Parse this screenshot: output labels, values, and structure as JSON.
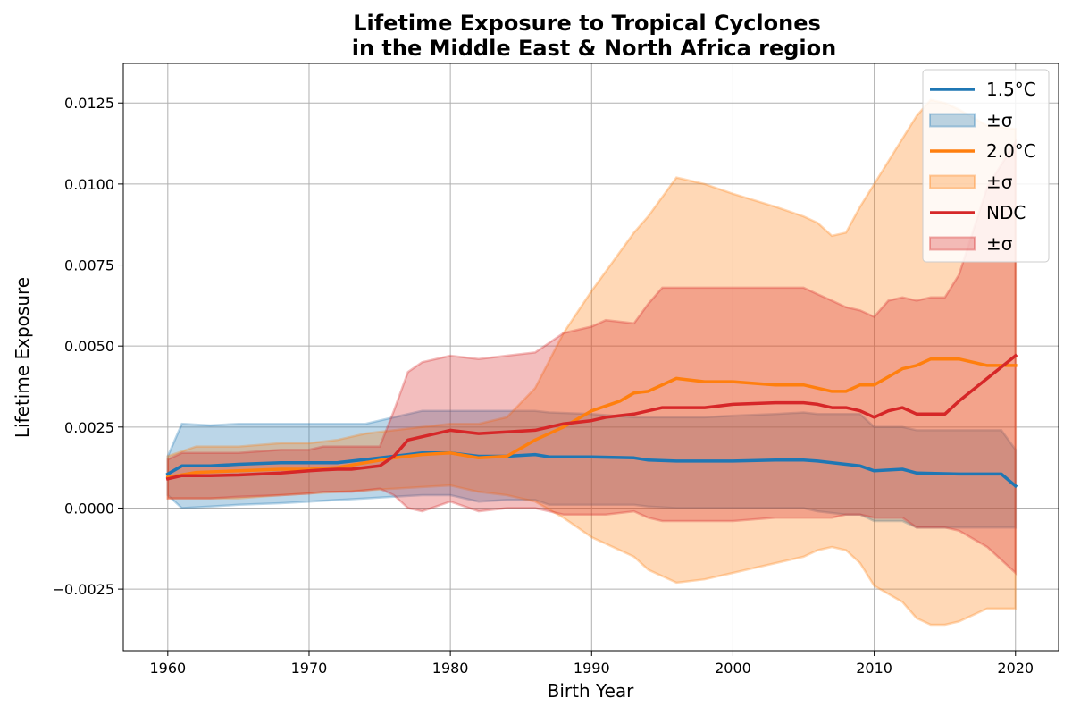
{
  "chart_data": {
    "type": "line",
    "title_line1": "Lifetime Exposure to Tropical Cyclones",
    "title_line2": "in the Middle East & North Africa region",
    "xlabel": "Birth Year",
    "ylabel": "Lifetime Exposure",
    "xlim": [
      1956.85,
      2023.05
    ],
    "ylim": [
      -0.0044,
      0.01372
    ],
    "grid": true,
    "legend_position": "top-right",
    "xticks": [
      1960,
      1970,
      1980,
      1990,
      2000,
      2010,
      2020
    ],
    "xtick_labels": [
      "1960",
      "1970",
      "1980",
      "1990",
      "2000",
      "2010",
      "2020"
    ],
    "yticks": [
      -0.0025,
      0.0,
      0.0025,
      0.005,
      0.0075,
      0.01,
      0.0125
    ],
    "ytick_labels": [
      "−0.0025",
      "0.0000",
      "0.0025",
      "0.0050",
      "0.0075",
      "0.0100",
      "0.0125"
    ],
    "series": [
      {
        "name": "1.5°C",
        "band_label": "±σ",
        "color": "#1f77b4",
        "x": [
          1960,
          1961,
          1963,
          1965,
          1968,
          1970,
          1972,
          1974,
          1976,
          1978,
          1980,
          1982,
          1984,
          1986,
          1987,
          1990,
          1993,
          1994,
          1996,
          1998,
          2000,
          2003,
          2005,
          2006,
          2008,
          2009,
          2010,
          2012,
          2013,
          2016,
          2019,
          2020
        ],
        "mean": [
          0.00105,
          0.0013,
          0.0013,
          0.00135,
          0.0014,
          0.0014,
          0.0014,
          0.0015,
          0.0016,
          0.0017,
          0.0017,
          0.0016,
          0.0016,
          0.00165,
          0.00158,
          0.00158,
          0.00155,
          0.00148,
          0.00145,
          0.00145,
          0.00145,
          0.00148,
          0.00148,
          0.00145,
          0.00135,
          0.0013,
          0.00115,
          0.0012,
          0.00108,
          0.00105,
          0.00105,
          0.00068
        ],
        "upper": [
          0.0016,
          0.0026,
          0.00255,
          0.0026,
          0.0026,
          0.0026,
          0.0026,
          0.0026,
          0.0028,
          0.003,
          0.003,
          0.003,
          0.003,
          0.003,
          0.00295,
          0.0029,
          0.0028,
          0.0028,
          0.0028,
          0.0028,
          0.00285,
          0.0029,
          0.00295,
          0.0029,
          0.0029,
          0.0029,
          0.0025,
          0.0025,
          0.0024,
          0.0024,
          0.0024,
          0.0018
        ],
        "lower": [
          0.0004,
          0.0,
          5e-05,
          0.0001,
          0.00015,
          0.0002,
          0.00025,
          0.0003,
          0.00035,
          0.0004,
          0.0004,
          0.0002,
          0.00025,
          0.00025,
          0.0001,
          0.0001,
          0.0001,
          5e-05,
          0.0,
          0.0,
          0.0,
          0.0,
          0.0,
          -0.0001,
          -0.0002,
          -0.0002,
          -0.0004,
          -0.0004,
          -0.0006,
          -0.0006,
          -0.0006,
          -0.0006
        ]
      },
      {
        "name": "2.0°C",
        "band_label": "±σ",
        "color": "#ff7f0e",
        "x": [
          1960,
          1962,
          1965,
          1968,
          1970,
          1972,
          1974,
          1976,
          1978,
          1980,
          1982,
          1984,
          1986,
          1988,
          1990,
          1992,
          1993,
          1994,
          1996,
          1998,
          2000,
          2003,
          2005,
          2006,
          2007,
          2008,
          2009,
          2010,
          2012,
          2013,
          2014,
          2015,
          2016,
          2018,
          2020
        ],
        "mean": [
          0.00095,
          0.0011,
          0.00115,
          0.0012,
          0.0012,
          0.00125,
          0.0014,
          0.00155,
          0.00165,
          0.0017,
          0.00155,
          0.0016,
          0.0021,
          0.0025,
          0.003,
          0.0033,
          0.00355,
          0.0036,
          0.004,
          0.0039,
          0.0039,
          0.0038,
          0.0038,
          0.0037,
          0.0036,
          0.0036,
          0.0038,
          0.0038,
          0.0043,
          0.0044,
          0.0046,
          0.0046,
          0.0046,
          0.0044,
          0.0044
        ],
        "upper": [
          0.0016,
          0.0019,
          0.0019,
          0.002,
          0.002,
          0.0021,
          0.0023,
          0.0024,
          0.0025,
          0.0026,
          0.0026,
          0.0028,
          0.0037,
          0.0054,
          0.0067,
          0.0079,
          0.0085,
          0.009,
          0.0102,
          0.01,
          0.0097,
          0.0093,
          0.009,
          0.0088,
          0.0084,
          0.0085,
          0.0093,
          0.01,
          0.0114,
          0.0121,
          0.0126,
          0.0125,
          0.0123,
          0.0118,
          0.0117
        ],
        "lower": [
          0.0003,
          0.0003,
          0.0003,
          0.0004,
          0.00045,
          0.0005,
          0.00055,
          0.0006,
          0.00065,
          0.0007,
          0.0005,
          0.0004,
          0.0002,
          -0.0003,
          -0.0009,
          -0.0013,
          -0.0015,
          -0.0019,
          -0.0023,
          -0.0022,
          -0.002,
          -0.0017,
          -0.0015,
          -0.0013,
          -0.0012,
          -0.0013,
          -0.0017,
          -0.0024,
          -0.0029,
          -0.0034,
          -0.0036,
          -0.0036,
          -0.0035,
          -0.0031,
          -0.0031
        ]
      },
      {
        "name": "NDC",
        "band_label": "±σ",
        "color": "#d62728",
        "x": [
          1960,
          1961,
          1963,
          1965,
          1968,
          1970,
          1971,
          1972,
          1973,
          1974,
          1975,
          1976,
          1977,
          1978,
          1980,
          1982,
          1984,
          1986,
          1988,
          1990,
          1991,
          1993,
          1994,
          1995,
          1996,
          1998,
          2000,
          2003,
          2005,
          2006,
          2007,
          2008,
          2009,
          2010,
          2011,
          2012,
          2013,
          2014,
          2015,
          2016,
          2018,
          2020
        ],
        "mean": [
          0.0009,
          0.001,
          0.001,
          0.00102,
          0.00108,
          0.00115,
          0.00118,
          0.0012,
          0.0012,
          0.00125,
          0.0013,
          0.0016,
          0.0021,
          0.0022,
          0.0024,
          0.0023,
          0.00235,
          0.0024,
          0.0026,
          0.0027,
          0.0028,
          0.0029,
          0.003,
          0.0031,
          0.0031,
          0.0031,
          0.0032,
          0.00325,
          0.00325,
          0.0032,
          0.0031,
          0.0031,
          0.003,
          0.0028,
          0.003,
          0.0031,
          0.0029,
          0.0029,
          0.0029,
          0.0033,
          0.004,
          0.0047
        ],
        "upper": [
          0.0015,
          0.0017,
          0.0017,
          0.0017,
          0.0018,
          0.0018,
          0.0019,
          0.0019,
          0.0019,
          0.0019,
          0.0019,
          0.003,
          0.0042,
          0.0045,
          0.0047,
          0.0046,
          0.0047,
          0.0048,
          0.0054,
          0.0056,
          0.0058,
          0.0057,
          0.0063,
          0.0068,
          0.0068,
          0.0068,
          0.0068,
          0.0068,
          0.0068,
          0.0066,
          0.0064,
          0.0062,
          0.0061,
          0.0059,
          0.0064,
          0.0065,
          0.0064,
          0.0065,
          0.0065,
          0.0072,
          0.0099,
          0.0113
        ],
        "lower": [
          0.0003,
          0.0003,
          0.0003,
          0.00035,
          0.0004,
          0.00045,
          0.0005,
          0.0005,
          0.0005,
          0.00055,
          0.0006,
          0.0004,
          0.0,
          -0.0001,
          0.0002,
          -0.0001,
          0.0,
          0.0,
          -0.0002,
          -0.0002,
          -0.0002,
          -0.0001,
          -0.0003,
          -0.0004,
          -0.0004,
          -0.0004,
          -0.0004,
          -0.0003,
          -0.0003,
          -0.0003,
          -0.0003,
          -0.0002,
          -0.0002,
          -0.0003,
          -0.0003,
          -0.0003,
          -0.0006,
          -0.0006,
          -0.0006,
          -0.0007,
          -0.0012,
          -0.002
        ]
      }
    ]
  }
}
